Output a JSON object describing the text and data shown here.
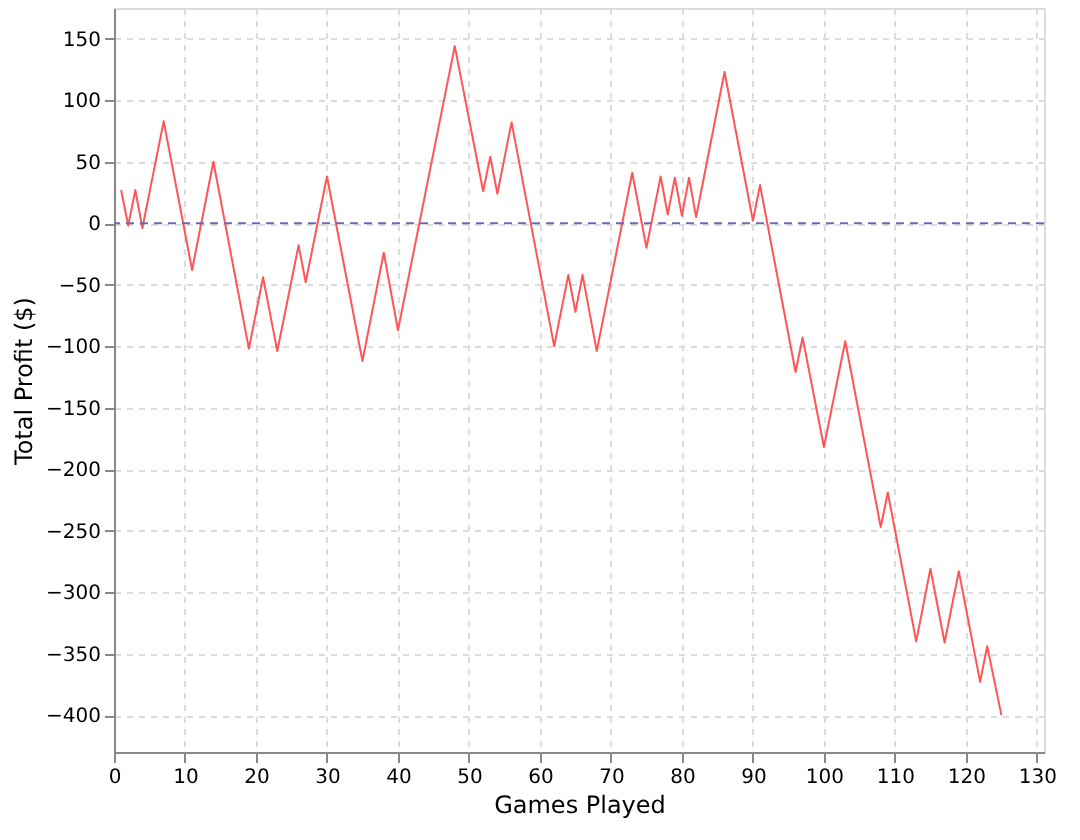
{
  "chart_data": {
    "type": "line",
    "xlabel": "Games Played",
    "ylabel": "Total Profit ($)",
    "series": [
      {
        "color": "#ff5555",
        "x": [
          1,
          2,
          3,
          4,
          7,
          11,
          14,
          19,
          21,
          23,
          26,
          27,
          30,
          35,
          38,
          40,
          48,
          52,
          53,
          54,
          56,
          62,
          64,
          65,
          66,
          68,
          73,
          75,
          77,
          78,
          79,
          80,
          81,
          82,
          86,
          90,
          91,
          96,
          97,
          100,
          103,
          108,
          109,
          113,
          115,
          117,
          119,
          122,
          123,
          125
        ],
        "values": [
          27,
          -2,
          27,
          -4,
          83,
          -38,
          50,
          -102,
          -44,
          -104,
          -18,
          -48,
          38,
          -112,
          -24,
          -87,
          144,
          26,
          54,
          24,
          82,
          -100,
          -42,
          -72,
          -42,
          -104,
          41,
          -20,
          38,
          7,
          37,
          6,
          37,
          5,
          123,
          2,
          31,
          -121,
          -93,
          -182,
          -96,
          -247,
          -219,
          -340,
          -281,
          -341,
          -283,
          -373,
          -344,
          -400
        ]
      }
    ],
    "xlim": [
      0,
      131
    ],
    "xticks": [
      0,
      10,
      20,
      30,
      40,
      50,
      60,
      70,
      80,
      90,
      100,
      110,
      120,
      130
    ],
    "ylim": [
      -430,
      175
    ],
    "yticks": [
      -400,
      -350,
      -300,
      -250,
      -200,
      -150,
      -100,
      -50,
      0,
      50,
      100,
      150
    ],
    "ref_lines": [
      {
        "axis": "y",
        "value": 0,
        "color": "#6a6ab8",
        "line_style": "dashed"
      }
    ],
    "grid": true,
    "marker": "none",
    "line_style": "solid"
  }
}
